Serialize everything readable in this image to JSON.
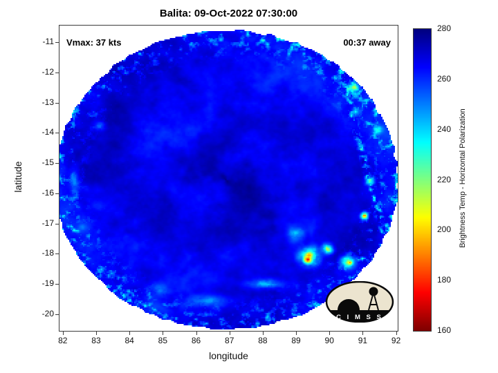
{
  "title": "Balita: 09-Oct-2022 07:30:00",
  "annotations": {
    "vmax": "Vmax: 37 kts",
    "time_away": "00:37 away"
  },
  "axes": {
    "xlabel": "longitude",
    "ylabel": "latitude",
    "xticks": [
      82,
      83,
      84,
      85,
      86,
      87,
      88,
      89,
      90,
      91,
      92
    ],
    "yticks": [
      -11,
      -12,
      -13,
      -14,
      -15,
      -16,
      -17,
      -18,
      -19,
      -20
    ]
  },
  "colorbar": {
    "label": "Brightness Temp - Horizontal Polarization",
    "min": 160,
    "max": 280,
    "ticks": [
      160,
      180,
      200,
      220,
      240,
      260,
      280
    ]
  },
  "logo": {
    "text": "C I M S S"
  },
  "chart_data": {
    "type": "heatmap",
    "title": "Balita: 09-Oct-2022 07:30:00",
    "xlabel": "longitude",
    "ylabel": "latitude",
    "xlim": [
      81.9,
      92.05
    ],
    "ylim": [
      -20.55,
      -10.45
    ],
    "xticks": [
      82,
      83,
      84,
      85,
      86,
      87,
      88,
      89,
      90,
      91,
      92
    ],
    "yticks": [
      -11,
      -12,
      -13,
      -14,
      -15,
      -16,
      -17,
      -18,
      -19,
      -20
    ],
    "annotations": [
      "Vmax: 37 kts",
      "00:37 away"
    ],
    "value_label": "Brightness Temp - Horizontal Polarization (K)",
    "value_range": [
      160,
      280
    ],
    "colormap": "jet-reversed (280=dark blue, 160=dark red)",
    "swath": {
      "center": [
        86.9,
        -15.55
      ],
      "radius_lon": 5.15,
      "radius_lat": 4.95,
      "base_temp_k": 266,
      "noise_amp_k": 8
    },
    "features": [
      {
        "lon": 89.4,
        "lat": -18.1,
        "r": 0.6,
        "temp": 198
      },
      {
        "lon": 89.35,
        "lat": -18.2,
        "r": 0.22,
        "temp": 178
      },
      {
        "lon": 90.55,
        "lat": -18.25,
        "r": 0.42,
        "temp": 207
      },
      {
        "lon": 90.62,
        "lat": -18.3,
        "r": 0.14,
        "temp": 182
      },
      {
        "lon": 91.05,
        "lat": -16.75,
        "r": 0.22,
        "temp": 186
      },
      {
        "lon": 90.75,
        "lat": -12.5,
        "r": 0.28,
        "temp": 212
      },
      {
        "lon": 90.8,
        "lat": -13.3,
        "r": 0.24,
        "temp": 232
      },
      {
        "lon": 91.2,
        "lat": -15.6,
        "r": 0.3,
        "temp": 224
      },
      {
        "lon": 89.95,
        "lat": -17.85,
        "r": 0.34,
        "temp": 214
      },
      {
        "lon": 89.0,
        "lat": -17.35,
        "r": 0.45,
        "temp": 236
      },
      {
        "lon": 88.1,
        "lat": -19.0,
        "r": 0.7,
        "temp": 243,
        "elong": [
          1.6,
          0.5
        ]
      },
      {
        "lon": 86.3,
        "lat": -19.55,
        "r": 0.8,
        "temp": 247,
        "elong": [
          1.7,
          0.45
        ]
      },
      {
        "lon": 84.9,
        "lat": -19.2,
        "r": 0.5,
        "temp": 250
      },
      {
        "lon": 82.35,
        "lat": -15.6,
        "r": 0.5,
        "temp": 249,
        "elong": [
          0.5,
          1.7
        ]
      },
      {
        "lon": 82.6,
        "lat": -17.1,
        "r": 0.4,
        "temp": 251
      },
      {
        "lon": 83.1,
        "lat": -13.8,
        "r": 0.35,
        "temp": 251
      },
      {
        "lon": 91.45,
        "lat": -13.9,
        "r": 0.3,
        "temp": 228
      }
    ],
    "seam": {
      "from": [
        90.35,
        -11.9
      ],
      "to": [
        91.6,
        -17.2
      ],
      "width_deg": 0.17,
      "temp": 222
    }
  }
}
